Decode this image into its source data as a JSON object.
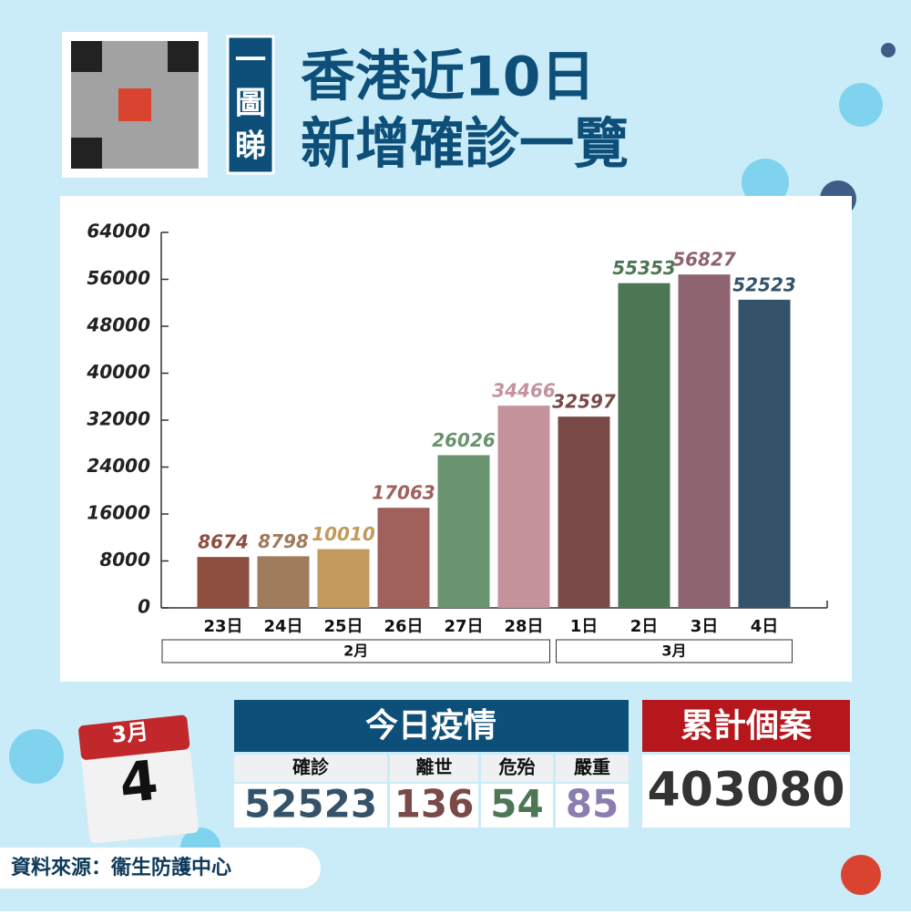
{
  "header": {
    "badge": [
      "一",
      "圖",
      "睇"
    ],
    "title_line1": "香港近10日",
    "title_line2": "新增確診一覽"
  },
  "chart_data": {
    "type": "bar",
    "groups": [
      {
        "name": "2月",
        "categories": [
          "23日",
          "24日",
          "25日",
          "26日",
          "27日",
          "28日"
        ],
        "values": [
          8674,
          8798,
          10010,
          17063,
          26026,
          34466
        ],
        "colors": [
          "#8e4e40",
          "#a07b5c",
          "#c29a5d",
          "#a0615c",
          "#6a9470",
          "#c4939b"
        ]
      },
      {
        "name": "3月",
        "categories": [
          "1日",
          "2日",
          "3日",
          "4日"
        ],
        "values": [
          32597,
          55353,
          56827,
          52523
        ],
        "colors": [
          "#7a4a48",
          "#4c7654",
          "#8e6470",
          "#34536a"
        ]
      }
    ],
    "ylim": [
      0,
      64000
    ],
    "yticks": [
      0,
      8000,
      16000,
      24000,
      32000,
      40000,
      48000,
      56000,
      64000
    ]
  },
  "calendar": {
    "month": "3月",
    "day": "4"
  },
  "today": {
    "title": "今日疫情",
    "columns": [
      {
        "label": "確診",
        "value": 52523,
        "color": "#34536a"
      },
      {
        "label": "離世",
        "value": 136,
        "color": "#7a4a48"
      },
      {
        "label": "危殆",
        "value": 54,
        "color": "#4c7654"
      },
      {
        "label": "嚴重",
        "value": 85,
        "color": "#8a7db0"
      }
    ]
  },
  "cumulative": {
    "title": "累計個案",
    "value": 403080
  },
  "source": "資料來源：衞生防護中心"
}
